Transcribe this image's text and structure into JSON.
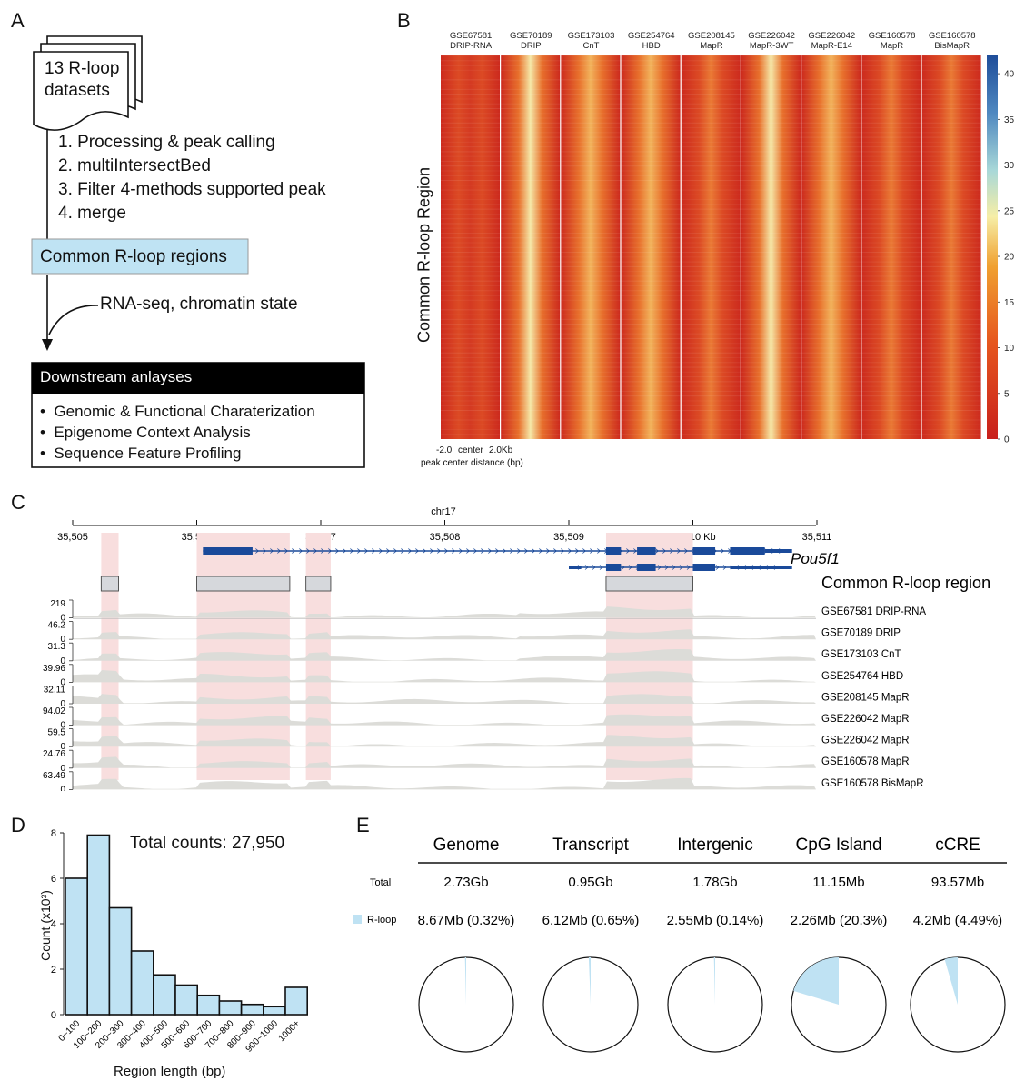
{
  "panel_letters": {
    "a": "A",
    "b": "B",
    "c": "C",
    "d": "D",
    "e": "E"
  },
  "panelA": {
    "datasets_label_1": "13 R-loop",
    "datasets_label_2": "datasets",
    "steps": [
      "1. Processing & peak calling",
      "2. multiIntersectBed",
      "3. Filter 4-methods supported peak",
      "4. merge"
    ],
    "common_box": "Common R-loop regions",
    "side_input": "RNA-seq, chromatin state",
    "downstream_title": "Downstream anlayses",
    "downstream_items": [
      "Genomic & Functional Charaterization",
      "Epigenome Context Analysis",
      "Sequence Feature Profiling"
    ]
  },
  "panelB": {
    "ylabel": "Common R-loop Region",
    "columns": [
      {
        "id": "GSE67581",
        "method": "DRIP-RNA",
        "peak": 0.15
      },
      {
        "id": "GSE70189",
        "method": "DRIP",
        "peak": 0.9
      },
      {
        "id": "GSE173103",
        "method": "CnT",
        "peak": 0.7
      },
      {
        "id": "GSE254764",
        "method": "HBD",
        "peak": 0.8
      },
      {
        "id": "GSE208145",
        "method": "MapR",
        "peak": 0.55
      },
      {
        "id": "GSE226042",
        "method": "MapR-3WT",
        "peak": 0.85
      },
      {
        "id": "GSE226042",
        "method": "MapR-E14",
        "peak": 0.75
      },
      {
        "id": "GSE160578",
        "method": "MapR",
        "peak": 0.5
      },
      {
        "id": "GSE160578",
        "method": "BisMapR",
        "peak": 0.45
      }
    ],
    "x_ticks": [
      "-2.0",
      "center",
      "2.0Kb"
    ],
    "xlabel": "peak center distance (bp)",
    "colorbar_ticks": [
      "0",
      "5",
      "10",
      "15",
      "20",
      "25",
      "30",
      "35",
      "40"
    ],
    "colors": {
      "low": "#c8201c",
      "mid": "#f0a030",
      "high_yellow": "#f5f0a0",
      "high": "#1f4e9a"
    }
  },
  "panelC": {
    "chrom": "chr17",
    "ticks": [
      "35,505",
      "35,506",
      "35,507",
      "35,508",
      "35,509",
      "35,510 Kb",
      "35,511"
    ],
    "gene": "Pou5f1",
    "region_label": "Common R-loop region",
    "tracks": [
      {
        "max": "219",
        "min": "0",
        "label": "GSE67581 DRIP-RNA"
      },
      {
        "max": "46.2",
        "min": "0",
        "label": "GSE70189 DRIP"
      },
      {
        "max": "31.3",
        "min": "0",
        "label": "GSE173103 CnT"
      },
      {
        "max": "39.96",
        "min": "0",
        "label": "GSE254764 HBD"
      },
      {
        "max": "32.11",
        "min": "0",
        "label": "GSE208145 MapR"
      },
      {
        "max": "94.02",
        "min": "0",
        "label": "GSE226042 MapR"
      },
      {
        "max": "59.5",
        "min": "0",
        "label": "GSE226042 MapR"
      },
      {
        "max": "24.76",
        "min": "0",
        "label": "GSE160578 MapR"
      },
      {
        "max": "63.49",
        "min": "0",
        "label": "GSE160578 BisMapR"
      }
    ],
    "colors": {
      "region_shade": "#f8dede",
      "track_fill": "#dcdcd8",
      "gene": "#1a4a9a",
      "region_box": "#d6d8dc"
    }
  },
  "chart_data": [
    {
      "type": "bar",
      "title": "Total counts: 27,950",
      "xlabel": "Region length (bp)",
      "ylabel": "Count (x10³)",
      "categories": [
        "0~100",
        "100~200",
        "200~300",
        "300~400",
        "400~500",
        "500~600",
        "600~700",
        "700~800",
        "800~900",
        "900~1000",
        "1000+"
      ],
      "values": [
        6.0,
        7.9,
        4.7,
        2.8,
        1.75,
        1.3,
        0.85,
        0.6,
        0.45,
        0.35,
        1.2
      ],
      "ylim": [
        0,
        8
      ],
      "y_ticks": [
        "0",
        "2",
        "4",
        "6",
        "8"
      ],
      "color": "#bfe2f3"
    },
    {
      "type": "pie",
      "columns": [
        "Genome",
        "Transcript",
        "Intergenic",
        "CpG Island",
        "cCRE"
      ],
      "row_labels": {
        "total": "Total",
        "rloop": "R-loop"
      },
      "totals": [
        "2.73Gb",
        "0.95Gb",
        "1.78Gb",
        "11.15Mb",
        "93.57Mb"
      ],
      "rloop": [
        "8.67Mb (0.32%)",
        "6.12Mb (0.65%)",
        "2.55Mb (0.14%)",
        "2.26Mb (20.3%)",
        "4.2Mb (4.49%)"
      ],
      "fractions": [
        0.0032,
        0.0065,
        0.0014,
        0.203,
        0.0449
      ],
      "color": "#bfe2f3"
    }
  ]
}
